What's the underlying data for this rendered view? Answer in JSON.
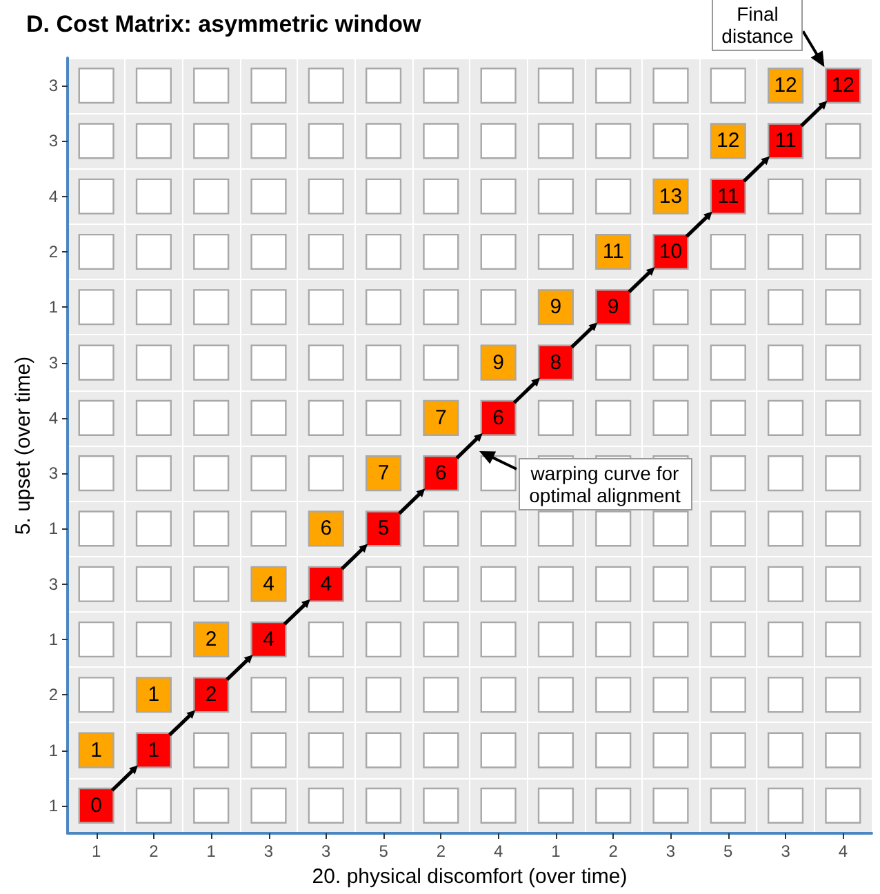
{
  "chart_data": {
    "type": "heatmap",
    "title": "D. Cost Matrix: asymmetric window",
    "xlabel": "20. physical discomfort (over time)",
    "ylabel": "5. upset (over time)",
    "categories": [
      "1",
      "2",
      "1",
      "3",
      "3",
      "5",
      "2",
      "4",
      "1",
      "2",
      "3",
      "5",
      "3",
      "4"
    ],
    "y_categories": [
      "3",
      "3",
      "4",
      "2",
      "1",
      "3",
      "4",
      "3",
      "1",
      "3",
      "1",
      "2",
      "1",
      "1"
    ],
    "cells": [
      [
        null,
        null,
        null,
        null,
        null,
        null,
        null,
        null,
        null,
        null,
        null,
        null,
        12,
        12
      ],
      [
        null,
        null,
        null,
        null,
        null,
        null,
        null,
        null,
        null,
        null,
        null,
        12,
        11,
        null
      ],
      [
        null,
        null,
        null,
        null,
        null,
        null,
        null,
        null,
        null,
        null,
        13,
        11,
        null,
        null
      ],
      [
        null,
        null,
        null,
        null,
        null,
        null,
        null,
        null,
        null,
        11,
        10,
        null,
        null,
        null
      ],
      [
        null,
        null,
        null,
        null,
        null,
        null,
        null,
        null,
        9,
        9,
        null,
        null,
        null,
        null
      ],
      [
        null,
        null,
        null,
        null,
        null,
        null,
        null,
        9,
        8,
        null,
        null,
        null,
        null,
        null
      ],
      [
        null,
        null,
        null,
        null,
        null,
        null,
        7,
        6,
        null,
        null,
        null,
        null,
        null,
        null
      ],
      [
        null,
        null,
        null,
        null,
        null,
        7,
        6,
        null,
        null,
        null,
        null,
        null,
        null,
        null
      ],
      [
        null,
        null,
        null,
        null,
        6,
        5,
        null,
        null,
        null,
        null,
        null,
        null,
        null,
        null
      ],
      [
        null,
        null,
        null,
        4,
        4,
        null,
        null,
        null,
        null,
        null,
        null,
        null,
        null,
        null
      ],
      [
        null,
        null,
        2,
        4,
        null,
        null,
        null,
        null,
        null,
        null,
        null,
        null,
        null,
        null
      ],
      [
        null,
        1,
        2,
        null,
        null,
        null,
        null,
        null,
        null,
        null,
        null,
        null,
        null,
        null
      ],
      [
        1,
        1,
        null,
        null,
        null,
        null,
        null,
        null,
        null,
        null,
        null,
        null,
        null,
        null
      ],
      [
        0,
        null,
        null,
        null,
        null,
        null,
        null,
        null,
        null,
        null,
        null,
        null,
        null,
        null
      ]
    ],
    "colors": [
      [
        "#ffffff",
        "#ffffff",
        "#ffffff",
        "#ffffff",
        "#ffffff",
        "#ffffff",
        "#ffffff",
        "#ffffff",
        "#ffffff",
        "#ffffff",
        "#ffffff",
        "#ffffff",
        "#ffa500",
        "#ff0000"
      ],
      [
        "#ffffff",
        "#ffffff",
        "#ffffff",
        "#ffffff",
        "#ffffff",
        "#ffffff",
        "#ffffff",
        "#ffffff",
        "#ffffff",
        "#ffffff",
        "#ffffff",
        "#ffa500",
        "#ff0000",
        "#ffffff"
      ],
      [
        "#ffffff",
        "#ffffff",
        "#ffffff",
        "#ffffff",
        "#ffffff",
        "#ffffff",
        "#ffffff",
        "#ffffff",
        "#ffffff",
        "#ffffff",
        "#ffa500",
        "#ff0000",
        "#ffffff",
        "#ffffff"
      ],
      [
        "#ffffff",
        "#ffffff",
        "#ffffff",
        "#ffffff",
        "#ffffff",
        "#ffffff",
        "#ffffff",
        "#ffffff",
        "#ffffff",
        "#ffa500",
        "#ff0000",
        "#ffffff",
        "#ffffff",
        "#ffffff"
      ],
      [
        "#ffffff",
        "#ffffff",
        "#ffffff",
        "#ffffff",
        "#ffffff",
        "#ffffff",
        "#ffffff",
        "#ffffff",
        "#ffa500",
        "#ff0000",
        "#ffffff",
        "#ffffff",
        "#ffffff",
        "#ffffff"
      ],
      [
        "#ffffff",
        "#ffffff",
        "#ffffff",
        "#ffffff",
        "#ffffff",
        "#ffffff",
        "#ffffff",
        "#ffa500",
        "#ff0000",
        "#ffffff",
        "#ffffff",
        "#ffffff",
        "#ffffff",
        "#ffffff"
      ],
      [
        "#ffffff",
        "#ffffff",
        "#ffffff",
        "#ffffff",
        "#ffffff",
        "#ffffff",
        "#ffa500",
        "#ff0000",
        "#ffffff",
        "#ffffff",
        "#ffffff",
        "#ffffff",
        "#ffffff",
        "#ffffff"
      ],
      [
        "#ffffff",
        "#ffffff",
        "#ffffff",
        "#ffffff",
        "#ffffff",
        "#ffa500",
        "#ff0000",
        "#ffffff",
        "#ffffff",
        "#ffffff",
        "#ffffff",
        "#ffffff",
        "#ffffff",
        "#ffffff"
      ],
      [
        "#ffffff",
        "#ffffff",
        "#ffffff",
        "#ffffff",
        "#ffa500",
        "#ff0000",
        "#ffffff",
        "#ffffff",
        "#ffffff",
        "#ffffff",
        "#ffffff",
        "#ffffff",
        "#ffffff",
        "#ffffff"
      ],
      [
        "#ffffff",
        "#ffffff",
        "#ffffff",
        "#ffa500",
        "#ff0000",
        "#ffffff",
        "#ffffff",
        "#ffffff",
        "#ffffff",
        "#ffffff",
        "#ffffff",
        "#ffffff",
        "#ffffff",
        "#ffffff"
      ],
      [
        "#ffffff",
        "#ffffff",
        "#ffa500",
        "#ff0000",
        "#ffffff",
        "#ffffff",
        "#ffffff",
        "#ffffff",
        "#ffffff",
        "#ffffff",
        "#ffffff",
        "#ffffff",
        "#ffffff",
        "#ffffff"
      ],
      [
        "#ffffff",
        "#ffa500",
        "#ff0000",
        "#ffffff",
        "#ffffff",
        "#ffffff",
        "#ffffff",
        "#ffffff",
        "#ffffff",
        "#ffffff",
        "#ffffff",
        "#ffffff",
        "#ffffff",
        "#ffffff"
      ],
      [
        "#ffa500",
        "#ff0000",
        "#ffffff",
        "#ffffff",
        "#ffffff",
        "#ffffff",
        "#ffffff",
        "#ffffff",
        "#ffffff",
        "#ffffff",
        "#ffffff",
        "#ffffff",
        "#ffffff",
        "#ffffff"
      ],
      [
        "#ff0000",
        "#ffffff",
        "#ffffff",
        "#ffffff",
        "#ffffff",
        "#ffffff",
        "#ffffff",
        "#ffffff",
        "#ffffff",
        "#ffffff",
        "#ffffff",
        "#ffffff",
        "#ffffff",
        "#ffffff"
      ]
    ],
    "data_labels": true,
    "grid": true,
    "annotations": [
      "Final distance",
      "warping curve for optimal alignment"
    ]
  }
}
